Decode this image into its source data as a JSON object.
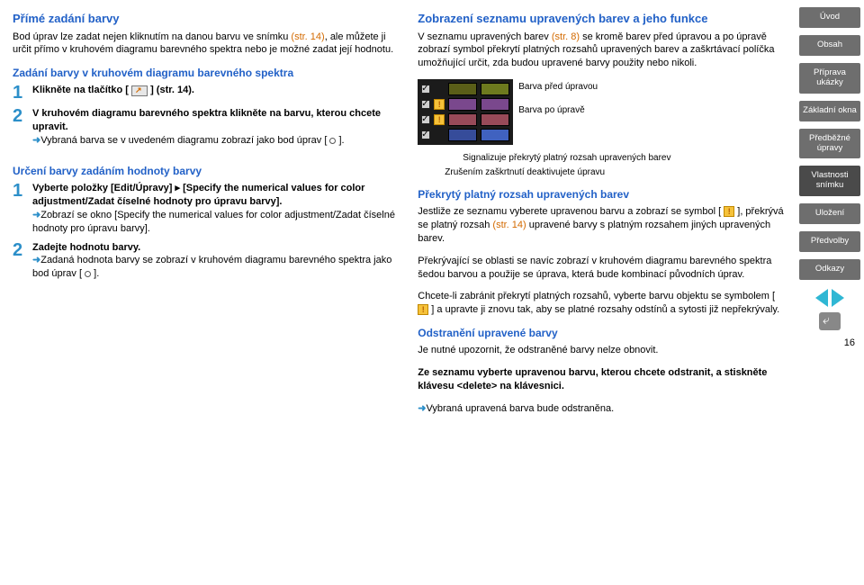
{
  "left": {
    "h1": "Přímé zadání barvy",
    "p1a": "Bod úprav lze zadat nejen kliknutím na danou barvu ve snímku ",
    "p1b": "(str. 14)",
    "p1c": ", ale můžete ji určit přímo v kruhovém diagramu barevného spektra nebo je možné zadat její hodnotu.",
    "h2": "Zadání barvy v kruhovém diagramu barevného spektra",
    "s1": "Klikněte na tlačítko [ ",
    "s1b": " ] (str. 14).",
    "s2": "V kruhovém diagramu barevného spektra klikněte na barvu, kterou chcete upravit.",
    "s2r": "Vybraná barva se v uvedeném diagramu zobrazí jako bod úprav [ ",
    "s2r2": " ].",
    "h3": "Určení barvy zadáním hodnoty barvy",
    "s3": "Vyberte položky [Edit/Úpravy] ▸ [Specify the numerical values for color adjustment/Zadat číselné hodnoty pro úpravu barvy].",
    "s3r": "Zobrazí se okno [Specify the numerical values for color adjustment/Zadat číselné hodnoty pro úpravu barvy].",
    "s4": "Zadejte hodnotu barvy.",
    "s4r": "Zadaná hodnota barvy se zobrazí v kruhovém diagramu barevného spektra jako bod úprav [ ",
    "s4r2": " ]."
  },
  "right": {
    "h1": "Zobrazení seznamu upravených barev a jeho funkce",
    "p1a": "V seznamu upravených barev ",
    "p1b": "(str. 8)",
    "p1c": " se kromě barev před úpravou a po úpravě zobrazí symbol překrytí platných rozsahů upravených barev a zaškrtávací políčka umožňující určit, zda budou upravené barvy použity nebo nikoli.",
    "lab1": "Barva před úpravou",
    "lab2": "Barva po úpravě",
    "cap1": "Signalizuje překrytý platný rozsah upravených barev",
    "cap2": "Zrušením zaškrtnutí deaktivujete úpravu",
    "h2": "Překrytý platný rozsah upravených barev",
    "p2a": "Jestliže ze seznamu vyberete upravenou barvu a zobrazí se symbol [ ",
    "p2b": " ], překrývá se platný rozsah ",
    "p2c": "(str. 14)",
    "p2d": " upravené barvy s platným rozsahem jiných upravených barev.",
    "p3": "Překrývající se oblasti se navíc zobrazí v kruhovém diagramu barevného spektra šedou barvou a použije se úprava, která bude kombinací původních úprav.",
    "p4": "Chcete-li zabránit překrytí platných rozsahů, vyberte barvu objektu se symbolem [ ",
    "p4b": " ] a upravte ji znovu tak, aby se platné rozsahy odstínů a sytosti již nepřekrývaly.",
    "h3": "Odstranění upravené barvy",
    "p5": "Je nutné upozornit, že odstraněné barvy nelze obnovit.",
    "p6": "Ze seznamu vyberte upravenou barvu, kterou chcete odstranit, a stiskněte klávesu <delete> na klávesnici.",
    "p6r": "Vybraná upravená barva bude odstraněna."
  },
  "swatches": [
    {
      "chk": true,
      "warn": false,
      "c1": "#5a5e18",
      "c2": "#6d7a1e"
    },
    {
      "chk": true,
      "warn": true,
      "c1": "#7a488d",
      "c2": "#7a488d"
    },
    {
      "chk": true,
      "warn": true,
      "c1": "#984a59",
      "c2": "#984a59"
    },
    {
      "chk": true,
      "warn": false,
      "c1": "#364c9a",
      "c2": "#4062c0"
    }
  ],
  "nav": [
    "Úvod",
    "Obsah",
    "Příprava ukázky",
    "Základní okna",
    "Předběžné úpravy",
    "Vlastnosti snímku",
    "Uložení",
    "Předvolby",
    "Odkazy"
  ],
  "nav_active_index": 5,
  "pagenum": "16"
}
